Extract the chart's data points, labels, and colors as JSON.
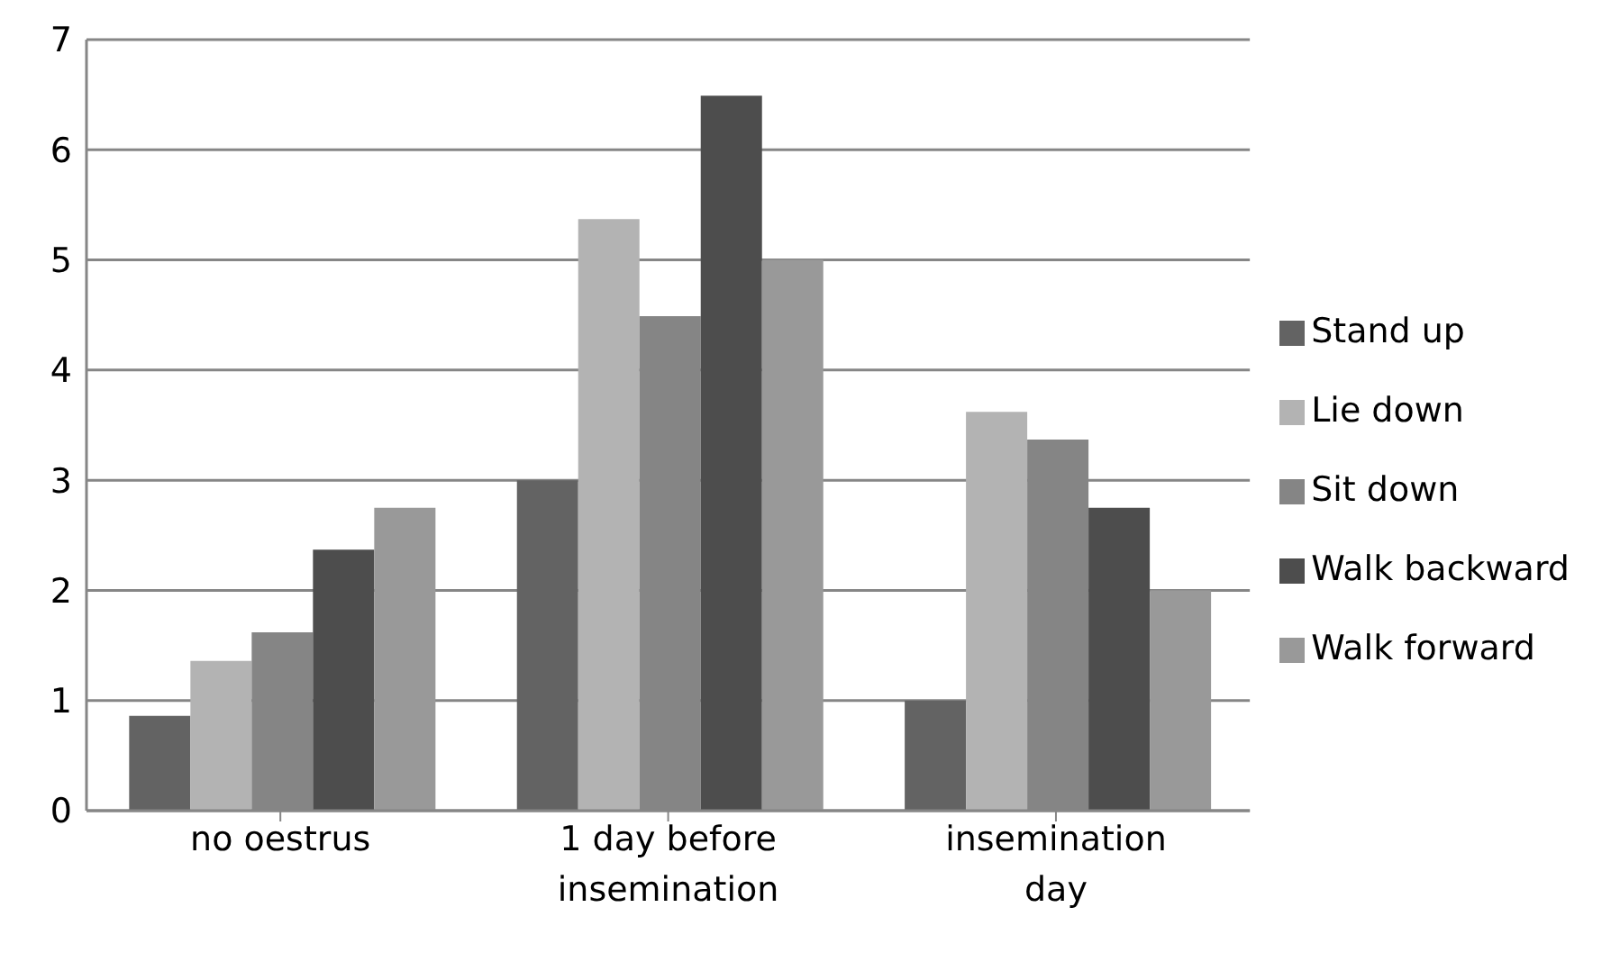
{
  "chart_data": {
    "type": "bar",
    "categories": [
      "no oestrus",
      "1 day before insemination",
      "insemination day"
    ],
    "series": [
      {
        "name": "Stand up",
        "color": "#636363",
        "values": [
          0.86,
          3.0,
          1.0
        ]
      },
      {
        "name": "Lie down",
        "color": "#b3b3b3",
        "values": [
          1.36,
          5.37,
          3.62
        ]
      },
      {
        "name": "Sit down",
        "color": "#858585",
        "values": [
          1.62,
          4.49,
          3.37
        ]
      },
      {
        "name": "Walk backward",
        "color": "#4d4d4d",
        "values": [
          2.37,
          6.49,
          2.75
        ]
      },
      {
        "name": "Walk forward",
        "color": "#999999",
        "values": [
          2.75,
          5.0,
          2.0
        ]
      }
    ],
    "ylim": [
      0,
      7
    ],
    "yticks": [
      0,
      1,
      2,
      3,
      4,
      5,
      6,
      7
    ],
    "grid": "y",
    "legend": "right"
  }
}
